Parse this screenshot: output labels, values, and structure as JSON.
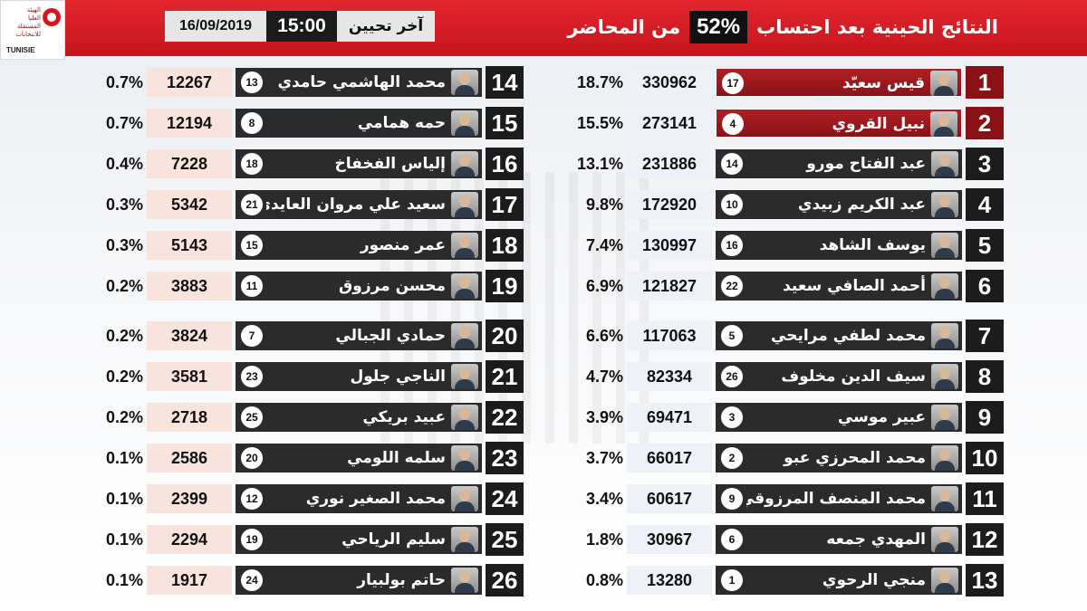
{
  "header": {
    "logo_lines": [
      "الهيئة",
      "العليا",
      "المستقلة",
      "للانتخابات"
    ],
    "logo_abbr": "TUNISIE",
    "date": "16/09/2019",
    "time": "15:00",
    "update_label": "آخر تحيين",
    "title_before": "النتائج الحينية بعد احتساب",
    "title_pct": "52%",
    "title_after": "من المحاضر"
  },
  "right_column": [
    {
      "rank": "1",
      "name": "قيس سعيّد",
      "number": "17",
      "votes": "330962",
      "percent": "18.7%",
      "highlight": true
    },
    {
      "rank": "2",
      "name": "نبيل القروي",
      "number": "4",
      "votes": "273141",
      "percent": "15.5%",
      "highlight": true
    },
    {
      "rank": "3",
      "name": "عبد الفتاح مورو",
      "number": "14",
      "votes": "231886",
      "percent": "13.1%",
      "highlight": false
    },
    {
      "rank": "4",
      "name": "عبد الكريم زبيدي",
      "number": "10",
      "votes": "172920",
      "percent": "9.8%",
      "highlight": false
    },
    {
      "rank": "5",
      "name": "يوسف الشاهد",
      "number": "16",
      "votes": "130997",
      "percent": "7.4%",
      "highlight": false
    },
    {
      "rank": "6",
      "name": "أحمد الصافي سعيد",
      "number": "22",
      "votes": "121827",
      "percent": "6.9%",
      "highlight": false
    },
    {
      "rank": "7",
      "name": "محمد لطفي مرايحي",
      "number": "5",
      "votes": "117063",
      "percent": "6.6%",
      "highlight": false
    },
    {
      "rank": "8",
      "name": "سيف الدين مخلوف",
      "number": "26",
      "votes": "82334",
      "percent": "4.7%",
      "highlight": false
    },
    {
      "rank": "9",
      "name": "عبير موسي",
      "number": "3",
      "votes": "69471",
      "percent": "3.9%",
      "highlight": false
    },
    {
      "rank": "10",
      "name": "محمد المحرزي عبو",
      "number": "2",
      "votes": "66017",
      "percent": "3.7%",
      "highlight": false
    },
    {
      "rank": "11",
      "name": "محمد المنصف المرزوقي",
      "number": "9",
      "votes": "60617",
      "percent": "3.4%",
      "highlight": false
    },
    {
      "rank": "12",
      "name": "المهدي جمعه",
      "number": "6",
      "votes": "30967",
      "percent": "1.8%",
      "highlight": false
    },
    {
      "rank": "13",
      "name": "منجي الرحوي",
      "number": "1",
      "votes": "13280",
      "percent": "0.8%",
      "highlight": false
    }
  ],
  "left_column": [
    {
      "rank": "14",
      "name": "محمد الهاشمي حامدي",
      "number": "13",
      "votes": "12267",
      "percent": "0.7%",
      "highlight": false
    },
    {
      "rank": "15",
      "name": "حمه همامي",
      "number": "8",
      "votes": "12194",
      "percent": "0.7%",
      "highlight": false
    },
    {
      "rank": "16",
      "name": "إلياس الفخفاخ",
      "number": "18",
      "votes": "7228",
      "percent": "0.4%",
      "highlight": false
    },
    {
      "rank": "17",
      "name": "سعيد علي مروان العايدي",
      "number": "21",
      "votes": "5342",
      "percent": "0.3%",
      "highlight": false
    },
    {
      "rank": "18",
      "name": "عمر منصور",
      "number": "15",
      "votes": "5143",
      "percent": "0.3%",
      "highlight": false
    },
    {
      "rank": "19",
      "name": "محسن مرزوق",
      "number": "11",
      "votes": "3883",
      "percent": "0.2%",
      "highlight": false
    },
    {
      "rank": "20",
      "name": "حمادي الجبالي",
      "number": "7",
      "votes": "3824",
      "percent": "0.2%",
      "highlight": false
    },
    {
      "rank": "21",
      "name": "الناجي جلول",
      "number": "23",
      "votes": "3581",
      "percent": "0.2%",
      "highlight": false
    },
    {
      "rank": "22",
      "name": "عبيد بريكي",
      "number": "25",
      "votes": "2718",
      "percent": "0.2%",
      "highlight": false
    },
    {
      "rank": "23",
      "name": "سلمه اللومي",
      "number": "20",
      "votes": "2586",
      "percent": "0.1%",
      "highlight": false
    },
    {
      "rank": "24",
      "name": "محمد الصغير نوري",
      "number": "12",
      "votes": "2399",
      "percent": "0.1%",
      "highlight": false
    },
    {
      "rank": "25",
      "name": "سليم الرياحي",
      "number": "19",
      "votes": "2294",
      "percent": "0.1%",
      "highlight": false
    },
    {
      "rank": "26",
      "name": "حاتم بولبيار",
      "number": "24",
      "votes": "1917",
      "percent": "0.1%",
      "highlight": false
    }
  ],
  "colors": {
    "header_red": "#d21f26",
    "highlight_red": "#8a1217",
    "bar_dark": "#2b2b2b"
  }
}
